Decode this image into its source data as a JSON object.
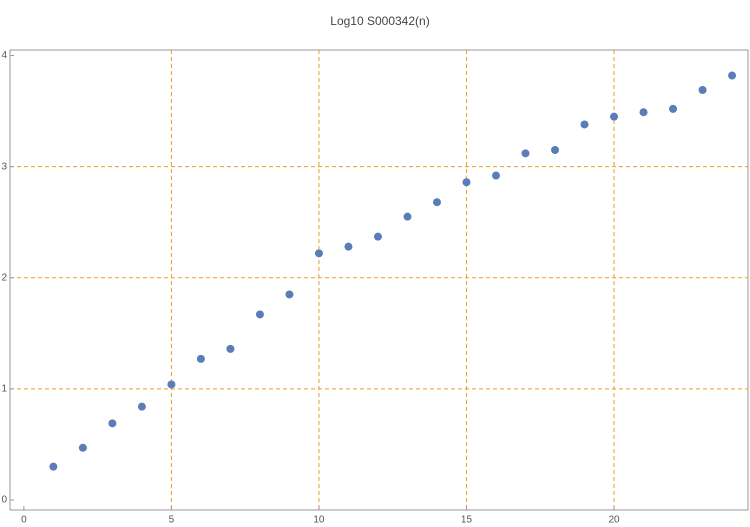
{
  "chart_data": {
    "type": "scatter",
    "title": "Log10 S000342(n)",
    "x": [
      1,
      2,
      3,
      4,
      5,
      6,
      7,
      8,
      9,
      10,
      11,
      12,
      13,
      14,
      15,
      16,
      17,
      18,
      19,
      20,
      21,
      22,
      23,
      24
    ],
    "series": [
      {
        "color": "#5a7db8",
        "values": [
          0.3,
          0.47,
          0.69,
          0.84,
          1.04,
          1.27,
          1.36,
          1.67,
          1.85,
          2.22,
          2.28,
          2.37,
          2.55,
          2.68,
          2.86,
          2.92,
          3.12,
          3.15,
          3.38,
          3.45,
          3.49,
          3.52,
          3.69,
          3.82
        ]
      }
    ],
    "xlim": [
      -0.47,
      24.54
    ],
    "ylim": [
      -0.09,
      4.05
    ],
    "xticks": [
      0,
      5,
      10,
      15,
      20
    ],
    "yticks": [
      0,
      1,
      2,
      3,
      4
    ],
    "xgrid": [
      5,
      10,
      15,
      20
    ],
    "ygrid": [
      1,
      2,
      3
    ],
    "grid_color": "#e8a020"
  }
}
